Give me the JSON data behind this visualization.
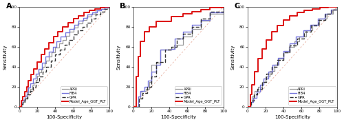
{
  "line_colors": {
    "APRI": "#999999",
    "FIB4": "#7777dd",
    "GPR": "#333333",
    "Model": "#dd1111"
  },
  "line_styles": {
    "APRI": "solid",
    "FIB4": "solid",
    "GPR": "dashed",
    "Model": "solid"
  },
  "line_widths": {
    "APRI": 0.9,
    "FIB4": 1.0,
    "GPR": 1.0,
    "Model": 1.4
  },
  "diag_color": "#e8b0a0",
  "diag_lw": 0.6,
  "xlabel": "100-Specificity",
  "ylabel": "Sensitivity",
  "xlim": [
    0,
    100
  ],
  "ylim": [
    0,
    100
  ],
  "xticks": [
    0,
    20,
    40,
    60,
    80,
    100
  ],
  "yticks": [
    0,
    20,
    40,
    60,
    80,
    100
  ],
  "figsize": [
    5.0,
    1.77
  ],
  "dpi": 100,
  "panel_label_fontsize": 8,
  "axis_fontsize": 5.0,
  "tick_fontsize": 4.2,
  "legend_fontsize": 3.8,
  "pA_APRI_fpr": [
    0,
    2,
    4,
    5,
    7,
    8,
    10,
    12,
    14,
    16,
    18,
    20,
    22,
    24,
    26,
    28,
    30,
    33,
    36,
    40,
    44,
    48,
    52,
    56,
    60,
    65,
    70,
    75,
    80,
    85,
    90,
    95,
    100
  ],
  "pA_APRI_tpr": [
    0,
    2,
    5,
    7,
    9,
    12,
    15,
    18,
    21,
    24,
    27,
    31,
    34,
    37,
    40,
    43,
    46,
    50,
    54,
    59,
    63,
    67,
    71,
    75,
    79,
    83,
    87,
    90,
    93,
    96,
    98,
    99,
    100
  ],
  "pA_FIB4_fpr": [
    0,
    2,
    4,
    6,
    8,
    10,
    12,
    15,
    18,
    21,
    25,
    29,
    33,
    37,
    41,
    46,
    51,
    56,
    61,
    66,
    71,
    76,
    81,
    86,
    91,
    95,
    100
  ],
  "pA_FIB4_tpr": [
    0,
    4,
    7,
    11,
    15,
    19,
    23,
    28,
    33,
    38,
    44,
    50,
    55,
    60,
    65,
    70,
    74,
    78,
    82,
    86,
    89,
    92,
    94,
    96,
    98,
    99,
    100
  ],
  "pA_GPR_fpr": [
    0,
    2,
    4,
    6,
    9,
    12,
    15,
    18,
    22,
    26,
    30,
    35,
    40,
    45,
    50,
    55,
    60,
    65,
    70,
    75,
    80,
    85,
    90,
    95,
    100
  ],
  "pA_GPR_tpr": [
    0,
    3,
    5,
    8,
    12,
    16,
    20,
    25,
    30,
    35,
    40,
    46,
    52,
    57,
    62,
    67,
    72,
    76,
    80,
    84,
    88,
    92,
    95,
    98,
    100
  ],
  "pA_Model_fpr": [
    0,
    2,
    4,
    6,
    8,
    10,
    13,
    16,
    20,
    24,
    28,
    33,
    38,
    43,
    48,
    54,
    60,
    66,
    72,
    78,
    84,
    90,
    95,
    100
  ],
  "pA_Model_tpr": [
    0,
    6,
    10,
    15,
    20,
    26,
    32,
    38,
    45,
    52,
    58,
    64,
    70,
    75,
    80,
    84,
    88,
    91,
    94,
    96,
    98,
    99,
    100,
    100
  ],
  "pB_APRI_fpr": [
    0,
    5,
    8,
    10,
    14,
    18,
    20,
    25,
    30,
    42,
    45,
    55,
    65,
    75,
    85,
    100
  ],
  "pB_APRI_tpr": [
    0,
    8,
    15,
    16,
    18,
    25,
    42,
    44,
    57,
    58,
    62,
    70,
    78,
    86,
    93,
    100
  ],
  "pB_FIB4_fpr": [
    0,
    5,
    8,
    12,
    16,
    20,
    25,
    30,
    42,
    46,
    55,
    65,
    75,
    85,
    100
  ],
  "pB_FIB4_tpr": [
    0,
    10,
    16,
    20,
    26,
    35,
    42,
    57,
    58,
    68,
    75,
    82,
    87,
    94,
    100
  ],
  "pB_GPR_fpr": [
    0,
    6,
    10,
    15,
    20,
    25,
    35,
    42,
    48,
    55,
    65,
    75,
    85,
    100
  ],
  "pB_GPR_tpr": [
    0,
    8,
    14,
    20,
    30,
    45,
    57,
    60,
    68,
    73,
    80,
    88,
    95,
    100
  ],
  "pB_Model_fpr": [
    0,
    3,
    5,
    8,
    12,
    18,
    25,
    42,
    55,
    65,
    75,
    85,
    100
  ],
  "pB_Model_tpr": [
    0,
    30,
    50,
    65,
    75,
    80,
    85,
    90,
    93,
    95,
    97,
    99,
    100
  ],
  "pC_APRI_fpr": [
    0,
    3,
    5,
    8,
    12,
    16,
    20,
    25,
    30,
    35,
    40,
    46,
    52,
    58,
    65,
    72,
    80,
    88,
    95,
    100
  ],
  "pC_APRI_tpr": [
    0,
    5,
    10,
    16,
    20,
    25,
    30,
    36,
    42,
    48,
    54,
    60,
    65,
    70,
    76,
    82,
    88,
    93,
    97,
    100
  ],
  "pC_FIB4_fpr": [
    0,
    3,
    6,
    10,
    14,
    18,
    23,
    28,
    34,
    40,
    47,
    54,
    62,
    70,
    78,
    86,
    93,
    100
  ],
  "pC_FIB4_tpr": [
    0,
    5,
    9,
    15,
    22,
    28,
    35,
    42,
    49,
    56,
    63,
    70,
    76,
    82,
    88,
    93,
    97,
    100
  ],
  "pC_GPR_fpr": [
    0,
    4,
    7,
    11,
    16,
    21,
    27,
    33,
    40,
    47,
    55,
    63,
    71,
    79,
    87,
    94,
    100
  ],
  "pC_GPR_tpr": [
    0,
    6,
    12,
    18,
    25,
    33,
    40,
    47,
    54,
    61,
    68,
    75,
    81,
    87,
    93,
    97,
    100
  ],
  "pC_Model_fpr": [
    0,
    3,
    5,
    8,
    12,
    16,
    21,
    27,
    33,
    40,
    47,
    55,
    63,
    72,
    81,
    90,
    97,
    100
  ],
  "pC_Model_tpr": [
    0,
    12,
    22,
    35,
    48,
    58,
    67,
    75,
    81,
    87,
    91,
    94,
    96,
    98,
    99,
    100,
    100,
    100
  ]
}
